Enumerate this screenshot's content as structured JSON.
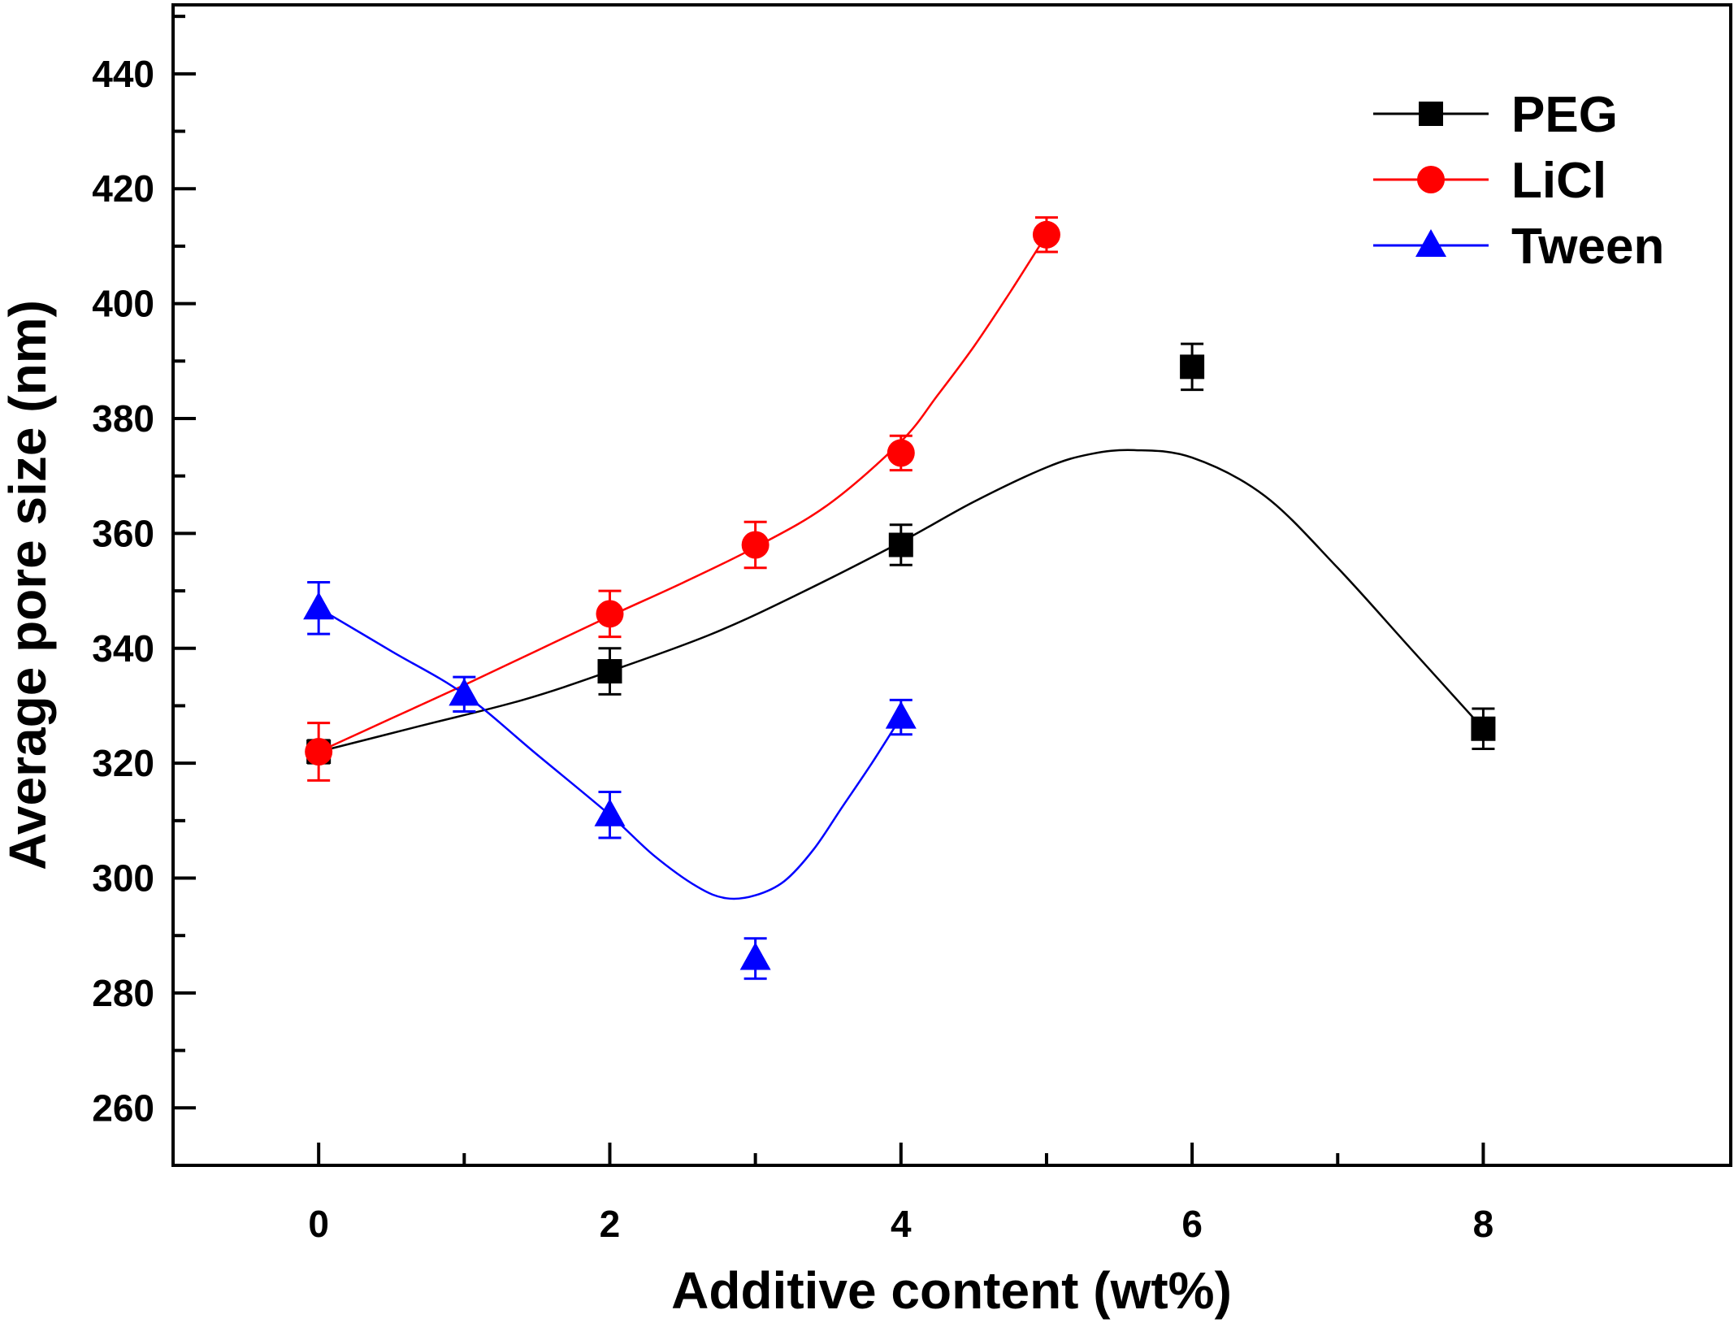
{
  "chart_data": {
    "type": "line",
    "title": "",
    "xlabel": "Additive content (wt%)",
    "ylabel": "Average pore size (nm)",
    "xlim": [
      -1,
      9.7
    ],
    "ylim": [
      250,
      452
    ],
    "x_ticks": [
      0,
      2,
      4,
      6,
      8
    ],
    "x_minor_ticks": [
      1,
      3,
      5,
      7
    ],
    "y_ticks": [
      260,
      280,
      300,
      320,
      340,
      360,
      380,
      400,
      420,
      440
    ],
    "grid": false,
    "legend_position": "top-right",
    "series": [
      {
        "name": "PEG",
        "color": "#000000",
        "marker": "square",
        "x": [
          0,
          2,
          4,
          6,
          8
        ],
        "y": [
          322,
          336,
          358,
          389,
          326
        ],
        "err": [
          2,
          4,
          3.5,
          4,
          3.5
        ],
        "fit_x": [
          0,
          0.7,
          1.4,
          2.0,
          2.7,
          3.3,
          4.0,
          4.5,
          5.0,
          5.3,
          5.6,
          6.0,
          6.5,
          7.0,
          7.5,
          8.0
        ],
        "fit_y": [
          322,
          326.5,
          331,
          336,
          342.5,
          349.5,
          358.5,
          365.5,
          371.5,
          373.8,
          374.5,
          373.2,
          366.5,
          354,
          340,
          326
        ]
      },
      {
        "name": "LiCl",
        "color": "#ff0000",
        "marker": "circle",
        "x": [
          0,
          2,
          3,
          4,
          5
        ],
        "y": [
          322,
          346,
          358,
          374,
          412
        ],
        "err": [
          5,
          4,
          4,
          3,
          3
        ],
        "fit_x": [
          0,
          0.5,
          1.0,
          1.5,
          2.0,
          2.5,
          3.0,
          3.5,
          4.0,
          4.25,
          4.5,
          4.75,
          5.0
        ],
        "fit_y": [
          322,
          327.8,
          333.6,
          339.6,
          345.6,
          351.4,
          357.6,
          365,
          376,
          384,
          392.5,
          402,
          412
        ]
      },
      {
        "name": "Tween",
        "color": "#0000ff",
        "marker": "triangle",
        "x": [
          0,
          1,
          2,
          3,
          4
        ],
        "y": [
          347,
          332,
          311,
          286,
          328
        ],
        "err": [
          4.5,
          3,
          4,
          3.5,
          3
        ],
        "fit_x": [
          0,
          0.5,
          1.0,
          1.5,
          2.0,
          2.3,
          2.6,
          2.8,
          3.0,
          3.2,
          3.4,
          3.6,
          3.8,
          4.0
        ],
        "fit_y": [
          347,
          339.5,
          332,
          321.5,
          311,
          304,
          298.5,
          296.5,
          297,
          299.5,
          305,
          312.5,
          320,
          328
        ]
      }
    ]
  }
}
